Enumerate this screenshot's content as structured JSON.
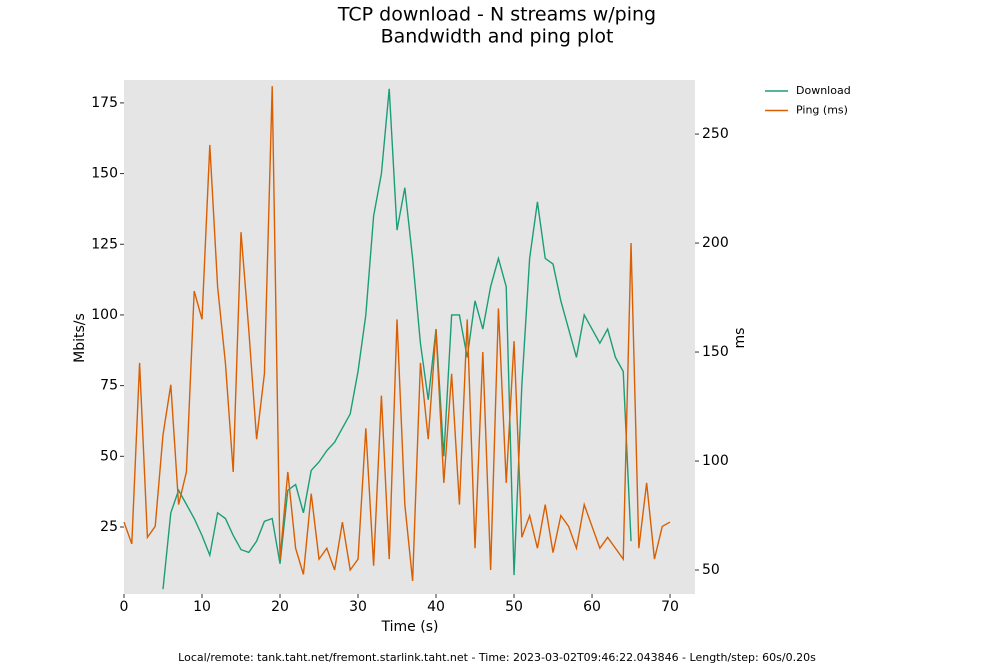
{
  "chart_data": {
    "type": "line",
    "title": "TCP download - N streams w/ping",
    "subtitle": "Bandwidth and ping plot",
    "xlabel": "Time (s)",
    "ylabel": "Mbits/s",
    "y2label": "ms",
    "footer": "Local/remote: tank.taht.net/fremont.starlink.taht.net - Time: 2023-03-02T09:46:22.043846 - Length/step: 60s/0.20s",
    "x": [
      0,
      1,
      2,
      3,
      4,
      5,
      6,
      7,
      8,
      9,
      10,
      11,
      12,
      13,
      14,
      15,
      16,
      17,
      18,
      19,
      20,
      21,
      22,
      23,
      24,
      25,
      26,
      27,
      28,
      29,
      30,
      31,
      32,
      33,
      34,
      35,
      36,
      37,
      38,
      39,
      40,
      41,
      42,
      43,
      44,
      45,
      46,
      47,
      48,
      49,
      50,
      51,
      52,
      53,
      54,
      55,
      56,
      57,
      58,
      59,
      60,
      61,
      62,
      63,
      64,
      65,
      66,
      67,
      68,
      69,
      70
    ],
    "series": [
      {
        "name": "Download",
        "color": "#1b9e77",
        "axis": "y",
        "values": [
          null,
          null,
          null,
          null,
          null,
          3,
          30,
          38,
          33,
          28,
          22,
          15,
          30,
          28,
          22,
          17,
          16,
          20,
          27,
          28,
          12,
          38,
          40,
          30,
          45,
          48,
          52,
          55,
          60,
          65,
          80,
          100,
          135,
          150,
          180,
          130,
          145,
          120,
          90,
          70,
          95,
          50,
          100,
          100,
          85,
          105,
          95,
          110,
          120,
          110,
          8,
          75,
          120,
          140,
          120,
          118,
          105,
          95,
          85,
          100,
          95,
          90,
          95,
          85,
          80,
          20,
          null,
          null,
          null,
          null,
          null
        ]
      },
      {
        "name": "Ping (ms)",
        "color": "#d95f02",
        "axis": "y2",
        "values": [
          72,
          62,
          145,
          65,
          70,
          112,
          135,
          80,
          95,
          178,
          165,
          245,
          180,
          145,
          95,
          205,
          160,
          110,
          140,
          272,
          55,
          95,
          60,
          48,
          85,
          55,
          60,
          50,
          72,
          50,
          55,
          115,
          52,
          130,
          55,
          165,
          80,
          45,
          145,
          110,
          160,
          90,
          140,
          80,
          165,
          60,
          150,
          50,
          170,
          90,
          155,
          65,
          75,
          60,
          80,
          58,
          75,
          70,
          60,
          80,
          70,
          60,
          65,
          60,
          55,
          200,
          60,
          90,
          55,
          70,
          72
        ]
      }
    ],
    "xlim": [
      0,
      73.2
    ],
    "ylim": [
      1.3,
      183.1
    ],
    "y2lim": [
      39,
      274.8
    ],
    "xticks": [
      0,
      10,
      20,
      30,
      40,
      50,
      60,
      70
    ],
    "yticks": [
      25,
      50,
      75,
      100,
      125,
      150,
      175
    ],
    "y2ticks": [
      50,
      100,
      150,
      200,
      250
    ],
    "grid": false,
    "legend": "outside-right"
  }
}
